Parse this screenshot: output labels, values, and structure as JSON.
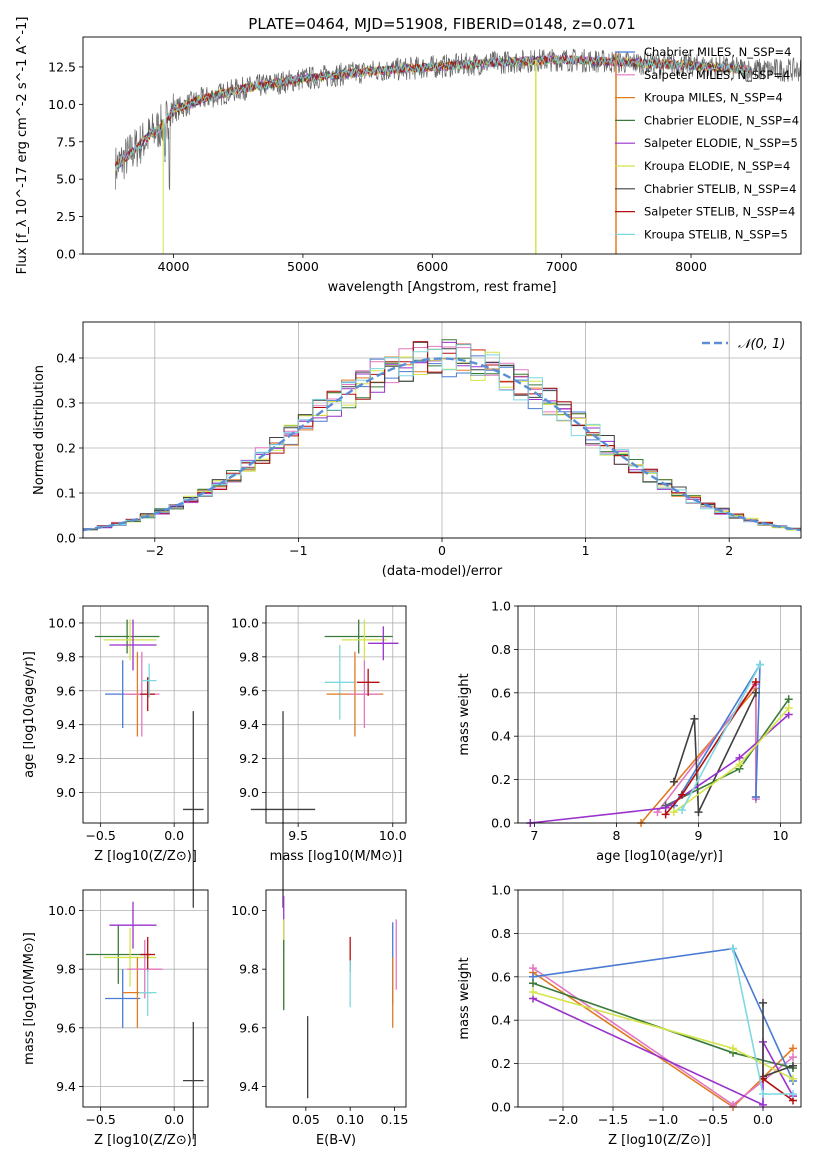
{
  "figure_title": "PLATE=0464, MJD=51908, FIBERID=0148, z=0.071",
  "chart_data": [
    {
      "id": "spectrum",
      "type": "line",
      "title": "PLATE=0464, MJD=51908, FIBERID=0148, z=0.071",
      "xlabel": "wavelength [Angstrom, rest frame]",
      "ylabel": "Flux [f_λ 10^-17 erg cm^-2 s^-1 A^-1]",
      "xlim": [
        3300,
        8850
      ],
      "ylim": [
        0,
        14.5
      ],
      "xticks": [
        4000,
        5000,
        6000,
        7000,
        8000
      ],
      "yticks": [
        0.0,
        2.5,
        5.0,
        7.5,
        10.0,
        12.5
      ],
      "grid": false,
      "legend_position": "right",
      "series": [
        {
          "name": "Chabrier MILES, N_SSP=4",
          "color": "#4a7bd4"
        },
        {
          "name": "Salpeter MILES, N_SSP=4",
          "color": "#e377c2"
        },
        {
          "name": "Kroupa MILES, N_SSP=4",
          "color": "#e07b20"
        },
        {
          "name": "Chabrier ELODIE, N_SSP=4",
          "color": "#3a7a3a"
        },
        {
          "name": "Salpeter ELODIE, N_SSP=5",
          "color": "#9932cc"
        },
        {
          "name": "Kroupa ELODIE, N_SSP=4",
          "color": "#d4e44a"
        },
        {
          "name": "Chabrier STELIB, N_SSP=4",
          "color": "#404040"
        },
        {
          "name": "Salpeter STELIB, N_SSP=4",
          "color": "#b21010"
        },
        {
          "name": "Kroupa STELIB, N_SSP=5",
          "color": "#7fd8e0"
        }
      ],
      "data_color": "#666666",
      "model_trend": {
        "x": [
          3550,
          3700,
          3800,
          3900,
          4000,
          4200,
          4500,
          5000,
          5500,
          6000,
          6500,
          7000,
          7500,
          8000,
          8500
        ],
        "y": [
          5.8,
          7.0,
          7.8,
          8.5,
          9.6,
          10.3,
          11.0,
          11.7,
          12.2,
          12.5,
          12.8,
          13.0,
          12.8,
          12.6,
          12.3
        ]
      }
    },
    {
      "id": "residuals",
      "type": "line",
      "xlabel": "(data-model)/error",
      "ylabel": "Normed distribution",
      "xlim": [
        -2.5,
        2.5
      ],
      "ylim": [
        0,
        0.48
      ],
      "xticks": [
        -2,
        -1,
        0,
        1,
        2
      ],
      "yticks": [
        0.0,
        0.1,
        0.2,
        0.3,
        0.4
      ],
      "grid": true,
      "legend_position": "top-right",
      "legend_label": "𝒩(0, 1)",
      "gaussian_color": "#5a8fd6",
      "bin_width": 0.1
    },
    {
      "id": "age_vs_Z",
      "type": "scatter",
      "xlabel": "Z [log10(Z/Z⊙)]",
      "ylabel": "age [log10(age/yr)]",
      "xlim": [
        -0.62,
        0.23
      ],
      "ylim": [
        8.82,
        10.1
      ],
      "xticks": [
        -0.5,
        0.0
      ],
      "yticks": [
        9.0,
        9.2,
        9.4,
        9.6,
        9.8,
        10.0
      ],
      "grid": true,
      "points": [
        {
          "x": -0.32,
          "y": 9.92,
          "xerr": 0.22,
          "yerr": 0.1,
          "series": 3
        },
        {
          "x": -0.3,
          "y": 9.9,
          "xerr": 0.18,
          "yerr": 0.12,
          "series": 5
        },
        {
          "x": -0.35,
          "y": 9.58,
          "xerr": 0.12,
          "yerr": 0.2,
          "series": 0
        },
        {
          "x": -0.28,
          "y": 9.87,
          "xerr": 0.16,
          "yerr": 0.15,
          "series": 4
        },
        {
          "x": -0.25,
          "y": 9.58,
          "xerr": 0.07,
          "yerr": 0.25,
          "series": 2
        },
        {
          "x": -0.22,
          "y": 9.58,
          "xerr": 0.12,
          "yerr": 0.25,
          "series": 1
        },
        {
          "x": -0.18,
          "y": 9.58,
          "xerr": 0.05,
          "yerr": 0.1,
          "series": 7
        },
        {
          "x": -0.17,
          "y": 9.66,
          "xerr": 0.05,
          "yerr": 0.1,
          "series": 8
        },
        {
          "x": 0.13,
          "y": 8.9,
          "xerr": 0.07,
          "yerr": 0.58,
          "series": 6
        }
      ]
    },
    {
      "id": "age_vs_mass",
      "type": "scatter",
      "xlabel": "mass [log10(M/M⊙)]",
      "ylabel": "",
      "xlim": [
        9.33,
        10.07
      ],
      "ylim": [
        8.82,
        10.1
      ],
      "xticks": [
        9.5,
        10.0
      ],
      "yticks": [
        9.0,
        9.2,
        9.4,
        9.6,
        9.8,
        10.0
      ],
      "grid": true,
      "points": [
        {
          "x": 9.82,
          "y": 9.92,
          "xerr": 0.18,
          "yerr": 0.1,
          "series": 3
        },
        {
          "x": 9.85,
          "y": 9.9,
          "xerr": 0.12,
          "yerr": 0.12,
          "series": 5
        },
        {
          "x": 9.72,
          "y": 9.65,
          "xerr": 0.08,
          "yerr": 0.22,
          "series": 8
        },
        {
          "x": 9.8,
          "y": 9.58,
          "xerr": 0.15,
          "yerr": 0.25,
          "series": 2
        },
        {
          "x": 9.85,
          "y": 9.58,
          "xerr": 0.08,
          "yerr": 0.2,
          "series": 1
        },
        {
          "x": 9.95,
          "y": 9.88,
          "xerr": 0.08,
          "yerr": 0.1,
          "series": 4
        },
        {
          "x": 9.87,
          "y": 9.65,
          "xerr": 0.06,
          "yerr": 0.08,
          "series": 7
        },
        {
          "x": 9.42,
          "y": 8.9,
          "xerr": 0.17,
          "yerr": 0.58,
          "series": 6
        }
      ]
    },
    {
      "id": "weight_vs_age",
      "type": "line",
      "xlabel": "age [log10(age/yr)]",
      "ylabel": "mass weight",
      "xlim": [
        6.8,
        10.25
      ],
      "ylim": [
        0,
        1.0
      ],
      "xticks": [
        7,
        8,
        9,
        10
      ],
      "yticks": [
        0.0,
        0.2,
        0.4,
        0.6,
        0.8,
        1.0
      ],
      "grid": true,
      "series": [
        {
          "color": "#e07b20",
          "points": [
            [
              8.3,
              0.0
            ],
            [
              9.7,
              0.62
            ],
            [
              9.7,
              0.12
            ]
          ]
        },
        {
          "color": "#e377c2",
          "points": [
            [
              8.5,
              0.05
            ],
            [
              9.7,
              0.64
            ],
            [
              9.7,
              0.11
            ]
          ]
        },
        {
          "color": "#4a7bd4",
          "points": [
            [
              8.7,
              0.08
            ],
            [
              9.75,
              0.73
            ],
            [
              9.7,
              0.12
            ]
          ]
        },
        {
          "color": "#404040",
          "points": [
            [
              8.7,
              0.19
            ],
            [
              8.95,
              0.48
            ],
            [
              9.0,
              0.05
            ],
            [
              9.7,
              0.6
            ]
          ]
        },
        {
          "color": "#3a7a3a",
          "points": [
            [
              8.6,
              0.08
            ],
            [
              9.5,
              0.25
            ],
            [
              10.1,
              0.57
            ]
          ]
        },
        {
          "color": "#9932cc",
          "points": [
            [
              6.95,
              0.0
            ],
            [
              8.6,
              0.07
            ],
            [
              9.5,
              0.3
            ],
            [
              10.1,
              0.5
            ]
          ]
        },
        {
          "color": "#d4e44a",
          "points": [
            [
              8.7,
              0.05
            ],
            [
              9.5,
              0.27
            ],
            [
              10.1,
              0.53
            ]
          ]
        },
        {
          "color": "#b21010",
          "points": [
            [
              8.6,
              0.04
            ],
            [
              8.8,
              0.13
            ],
            [
              9.7,
              0.65
            ]
          ]
        },
        {
          "color": "#7fd8e0",
          "points": [
            [
              8.8,
              0.06
            ],
            [
              9.75,
              0.73
            ]
          ]
        }
      ]
    },
    {
      "id": "mass_vs_Z",
      "type": "scatter",
      "xlabel": "Z [log10(Z/Z⊙)]",
      "ylabel": "mass [log10(M/M⊙)]",
      "xlim": [
        -0.62,
        0.23
      ],
      "ylim": [
        9.33,
        10.07
      ],
      "xticks": [
        -0.5,
        0.0
      ],
      "yticks": [
        9.4,
        9.6,
        9.8,
        10.0
      ],
      "grid": true,
      "points": [
        {
          "x": -0.38,
          "y": 9.85,
          "xerr": 0.22,
          "yerr": 0.1,
          "series": 3
        },
        {
          "x": -0.3,
          "y": 9.84,
          "xerr": 0.18,
          "yerr": 0.1,
          "series": 5
        },
        {
          "x": -0.35,
          "y": 9.7,
          "xerr": 0.12,
          "yerr": 0.1,
          "series": 0
        },
        {
          "x": -0.28,
          "y": 9.95,
          "xerr": 0.16,
          "yerr": 0.08,
          "series": 4
        },
        {
          "x": -0.25,
          "y": 9.72,
          "xerr": 0.1,
          "yerr": 0.12,
          "series": 2
        },
        {
          "x": -0.2,
          "y": 9.8,
          "xerr": 0.12,
          "yerr": 0.1,
          "series": 1
        },
        {
          "x": -0.18,
          "y": 9.85,
          "xerr": 0.05,
          "yerr": 0.06,
          "series": 7
        },
        {
          "x": -0.18,
          "y": 9.72,
          "xerr": 0.06,
          "yerr": 0.08,
          "series": 8
        },
        {
          "x": 0.13,
          "y": 9.42,
          "xerr": 0.07,
          "yerr": 0.2,
          "series": 6
        }
      ]
    },
    {
      "id": "mass_vs_ebv",
      "type": "scatter",
      "xlabel": "E(B-V)",
      "ylabel": "",
      "xlim": [
        0.005,
        0.163
      ],
      "ylim": [
        9.33,
        10.07
      ],
      "xticks": [
        0.05,
        0.1,
        0.15
      ],
      "yticks": [
        9.4,
        9.6,
        9.8,
        10.0
      ],
      "grid": false,
      "points": [
        {
          "x": 0.025,
          "y": 9.95,
          "xerr": 0,
          "yerr": 0.1,
          "series": 4
        },
        {
          "x": 0.025,
          "y": 9.82,
          "xerr": 0,
          "yerr": 0.15,
          "series": 5
        },
        {
          "x": 0.025,
          "y": 9.78,
          "xerr": 0,
          "yerr": 0.12,
          "series": 3
        },
        {
          "x": 0.052,
          "y": 9.5,
          "xerr": 0,
          "yerr": 0.14,
          "series": 6
        },
        {
          "x": 0.1,
          "y": 9.85,
          "xerr": 0,
          "yerr": 0.06,
          "series": 7
        },
        {
          "x": 0.1,
          "y": 9.75,
          "xerr": 0,
          "yerr": 0.08,
          "series": 8
        },
        {
          "x": 0.148,
          "y": 9.82,
          "xerr": 0,
          "yerr": 0.14,
          "series": 0
        },
        {
          "x": 0.148,
          "y": 9.72,
          "xerr": 0,
          "yerr": 0.12,
          "series": 2
        },
        {
          "x": 0.152,
          "y": 9.85,
          "xerr": 0,
          "yerr": 0.12,
          "series": 1
        }
      ]
    },
    {
      "id": "weight_vs_Z",
      "type": "line",
      "xlabel": "Z [log10(Z/Z⊙)]",
      "ylabel": "mass weight",
      "xlim": [
        -2.45,
        0.38
      ],
      "ylim": [
        0,
        1.0
      ],
      "xticks": [
        -2.0,
        -1.5,
        -1.0,
        -0.5,
        0.0
      ],
      "yticks": [
        0.0,
        0.2,
        0.4,
        0.6,
        0.8,
        1.0
      ],
      "grid": true,
      "series": [
        {
          "color": "#e07b20",
          "points": [
            [
              -2.3,
              0.62
            ],
            [
              -0.3,
              0.0
            ],
            [
              0.3,
              0.27
            ]
          ]
        },
        {
          "color": "#e377c2",
          "points": [
            [
              -2.3,
              0.64
            ],
            [
              -0.3,
              0.01
            ],
            [
              0.3,
              0.23
            ]
          ]
        },
        {
          "color": "#4a7bd4",
          "points": [
            [
              -2.3,
              0.6
            ],
            [
              -0.3,
              0.73
            ],
            [
              0.3,
              0.12
            ]
          ]
        },
        {
          "color": "#3a7a3a",
          "points": [
            [
              -2.3,
              0.57
            ],
            [
              -0.3,
              0.25
            ],
            [
              0.3,
              0.18
            ]
          ]
        },
        {
          "color": "#9932cc",
          "points": [
            [
              -2.3,
              0.5
            ],
            [
              0.0,
              0.01
            ],
            [
              0.0,
              0.3
            ],
            [
              0.3,
              0.05
            ]
          ]
        },
        {
          "color": "#d4e44a",
          "points": [
            [
              -2.3,
              0.53
            ],
            [
              -0.3,
              0.27
            ],
            [
              0.3,
              0.13
            ]
          ]
        },
        {
          "color": "#404040",
          "points": [
            [
              0.0,
              0.48
            ],
            [
              0.0,
              0.14
            ],
            [
              0.3,
              0.19
            ]
          ]
        },
        {
          "color": "#b21010",
          "points": [
            [
              0.0,
              0.13
            ],
            [
              0.3,
              0.03
            ]
          ]
        },
        {
          "color": "#7fd8e0",
          "points": [
            [
              -0.3,
              0.73
            ],
            [
              0.0,
              0.06
            ],
            [
              0.3,
              0.06
            ]
          ]
        }
      ]
    }
  ]
}
